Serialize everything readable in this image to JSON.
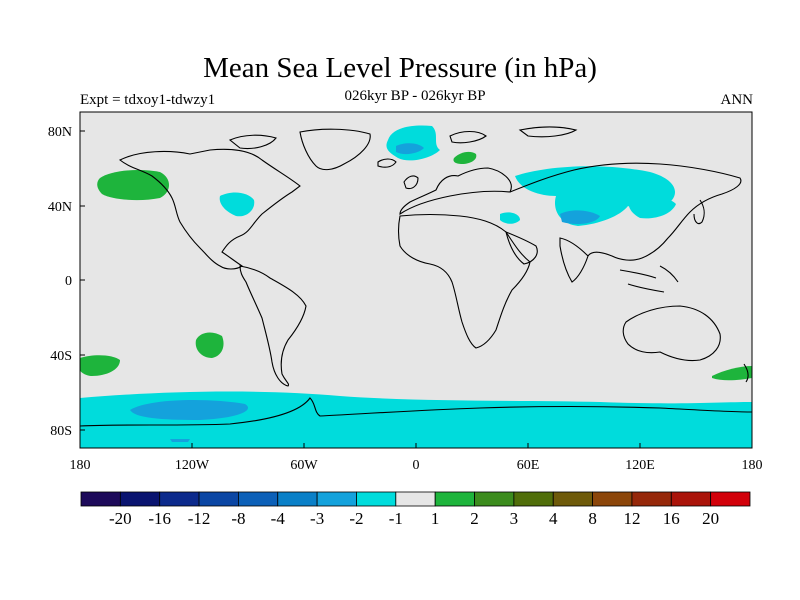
{
  "title": "Mean Sea Level Pressure (in hPa)",
  "left_label": "Expt = tdxoy1-tdwzy1",
  "center_label": "026kyr BP - 026kyr BP",
  "right_label": "ANN",
  "axes": {
    "lon_ticks": [
      "180",
      "120W",
      "60W",
      "0",
      "60E",
      "120E",
      "180"
    ],
    "lat_ticks": [
      "80N",
      "40N",
      "0",
      "40S",
      "80S"
    ]
  },
  "colorbar": {
    "colors": [
      "#1d0a5a",
      "#0a1470",
      "#0c2a8c",
      "#0b46a4",
      "#0c60b8",
      "#0a80c8",
      "#14a2dc",
      "#00dcdc",
      "#e6e6e6",
      "#1eb43c",
      "#3c8c1e",
      "#506e0a",
      "#6e5a0a",
      "#8c460a",
      "#96280a",
      "#aa140a",
      "#d2000a"
    ],
    "labels": [
      "-20",
      "-16",
      "-12",
      "-8",
      "-4",
      "-3",
      "-2",
      "-1",
      "1",
      "2",
      "3",
      "4",
      "8",
      "12",
      "16",
      "20"
    ]
  },
  "colors": {
    "land_ocean_background": "#e6e6e6",
    "cyan": "#00dcdc",
    "blue": "#14a2dc",
    "darkblue": "#0a80c8",
    "green": "#1eb43c"
  }
}
